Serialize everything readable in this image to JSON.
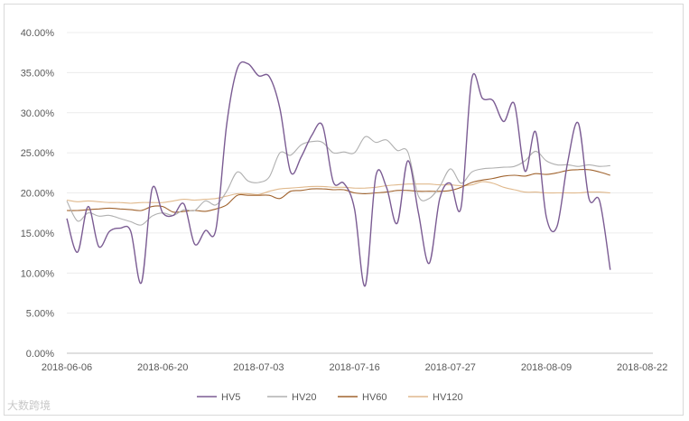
{
  "chart_data": {
    "type": "line",
    "title": "",
    "xlabel": "",
    "ylabel": "",
    "ylim": [
      0,
      0.4
    ],
    "yticks": [
      "0.00%",
      "5.00%",
      "10.00%",
      "15.00%",
      "20.00%",
      "25.00%",
      "30.00%",
      "35.00%",
      "40.00%"
    ],
    "x": [
      "2018-06-06",
      "2018-06-07",
      "2018-06-08",
      "2018-06-11",
      "2018-06-12",
      "2018-06-13",
      "2018-06-14",
      "2018-06-15",
      "2018-06-19",
      "2018-06-20",
      "2018-06-21",
      "2018-06-22",
      "2018-06-25",
      "2018-06-26",
      "2018-06-27",
      "2018-06-28",
      "2018-06-29",
      "2018-07-02",
      "2018-07-03",
      "2018-07-04",
      "2018-07-05",
      "2018-07-06",
      "2018-07-09",
      "2018-07-10",
      "2018-07-11",
      "2018-07-12",
      "2018-07-13",
      "2018-07-16",
      "2018-07-17",
      "2018-07-18",
      "2018-07-19",
      "2018-07-20",
      "2018-07-23",
      "2018-07-24",
      "2018-07-25",
      "2018-07-26",
      "2018-07-27",
      "2018-07-30",
      "2018-07-31",
      "2018-08-01",
      "2018-08-02",
      "2018-08-03",
      "2018-08-06",
      "2018-08-07",
      "2018-08-08",
      "2018-08-09",
      "2018-08-10",
      "2018-08-13",
      "2018-08-14",
      "2018-08-15",
      "2018-08-16",
      "2018-08-17",
      "2018-08-20",
      "2018-08-21",
      "2018-08-22",
      "2018-08-23"
    ],
    "xtick_labels": [
      "2018-06-06",
      "2018-06-20",
      "2018-07-03",
      "2018-07-16",
      "2018-07-27",
      "2018-08-09",
      "2018-08-22"
    ],
    "grid": "horizontal",
    "legend_position": "bottom",
    "series": [
      {
        "name": "HV5",
        "color": "#7b5c93",
        "values": [
          0.168,
          0.126,
          0.183,
          0.133,
          0.152,
          0.156,
          0.152,
          0.088,
          0.205,
          0.175,
          0.172,
          0.186,
          0.136,
          0.153,
          0.155,
          0.285,
          0.355,
          0.361,
          0.346,
          0.345,
          0.305,
          0.226,
          0.245,
          0.272,
          0.284,
          0.214,
          0.212,
          0.18,
          0.084,
          0.221,
          0.207,
          0.162,
          0.24,
          0.175,
          0.112,
          0.193,
          0.212,
          0.182,
          0.342,
          0.318,
          0.315,
          0.289,
          0.311,
          0.227,
          0.276,
          0.17,
          0.158,
          0.238,
          0.287,
          0.193,
          0.19,
          0.104,
          null,
          null,
          null,
          null
        ]
      },
      {
        "name": "HV20",
        "color": "#b0b0b0",
        "values": [
          0.19,
          0.165,
          0.175,
          0.171,
          0.172,
          0.168,
          0.164,
          0.16,
          0.171,
          0.175,
          0.172,
          0.179,
          0.178,
          0.19,
          0.185,
          0.202,
          0.226,
          0.215,
          0.213,
          0.22,
          0.25,
          0.247,
          0.26,
          0.264,
          0.263,
          0.25,
          0.251,
          0.25,
          0.27,
          0.263,
          0.266,
          0.253,
          0.251,
          0.196,
          0.193,
          0.208,
          0.23,
          0.212,
          0.226,
          0.23,
          0.231,
          0.232,
          0.233,
          0.24,
          0.252,
          0.24,
          0.235,
          0.235,
          0.233,
          0.235,
          0.233,
          0.234,
          null,
          null,
          null,
          null
        ]
      },
      {
        "name": "HV60",
        "color": "#a0632e",
        "values": [
          0.178,
          0.178,
          0.179,
          0.18,
          0.181,
          0.18,
          0.179,
          0.178,
          0.183,
          0.183,
          0.176,
          0.177,
          0.178,
          0.177,
          0.18,
          0.185,
          0.197,
          0.197,
          0.197,
          0.197,
          0.193,
          0.202,
          0.203,
          0.205,
          0.205,
          0.204,
          0.204,
          0.2,
          0.199,
          0.2,
          0.201,
          0.203,
          0.203,
          0.202,
          0.202,
          0.202,
          0.203,
          0.207,
          0.213,
          0.216,
          0.218,
          0.221,
          0.222,
          0.221,
          0.224,
          0.223,
          0.225,
          0.228,
          0.229,
          0.229,
          0.226,
          0.222,
          null,
          null,
          null,
          null
        ]
      },
      {
        "name": "HV120",
        "color": "#e0b98d",
        "values": [
          0.191,
          0.189,
          0.19,
          0.189,
          0.188,
          0.188,
          0.187,
          0.188,
          0.188,
          0.188,
          0.19,
          0.192,
          0.191,
          0.192,
          0.193,
          0.196,
          0.199,
          0.199,
          0.198,
          0.202,
          0.205,
          0.206,
          0.207,
          0.208,
          0.208,
          0.207,
          0.207,
          0.206,
          0.206,
          0.207,
          0.209,
          0.21,
          0.211,
          0.211,
          0.211,
          0.21,
          0.21,
          0.209,
          0.21,
          0.214,
          0.212,
          0.207,
          0.204,
          0.201,
          0.201,
          0.2,
          0.2,
          0.2,
          0.2,
          0.201,
          0.201,
          0.2,
          null,
          null,
          null,
          null
        ]
      }
    ]
  },
  "watermark": "大数跨境"
}
